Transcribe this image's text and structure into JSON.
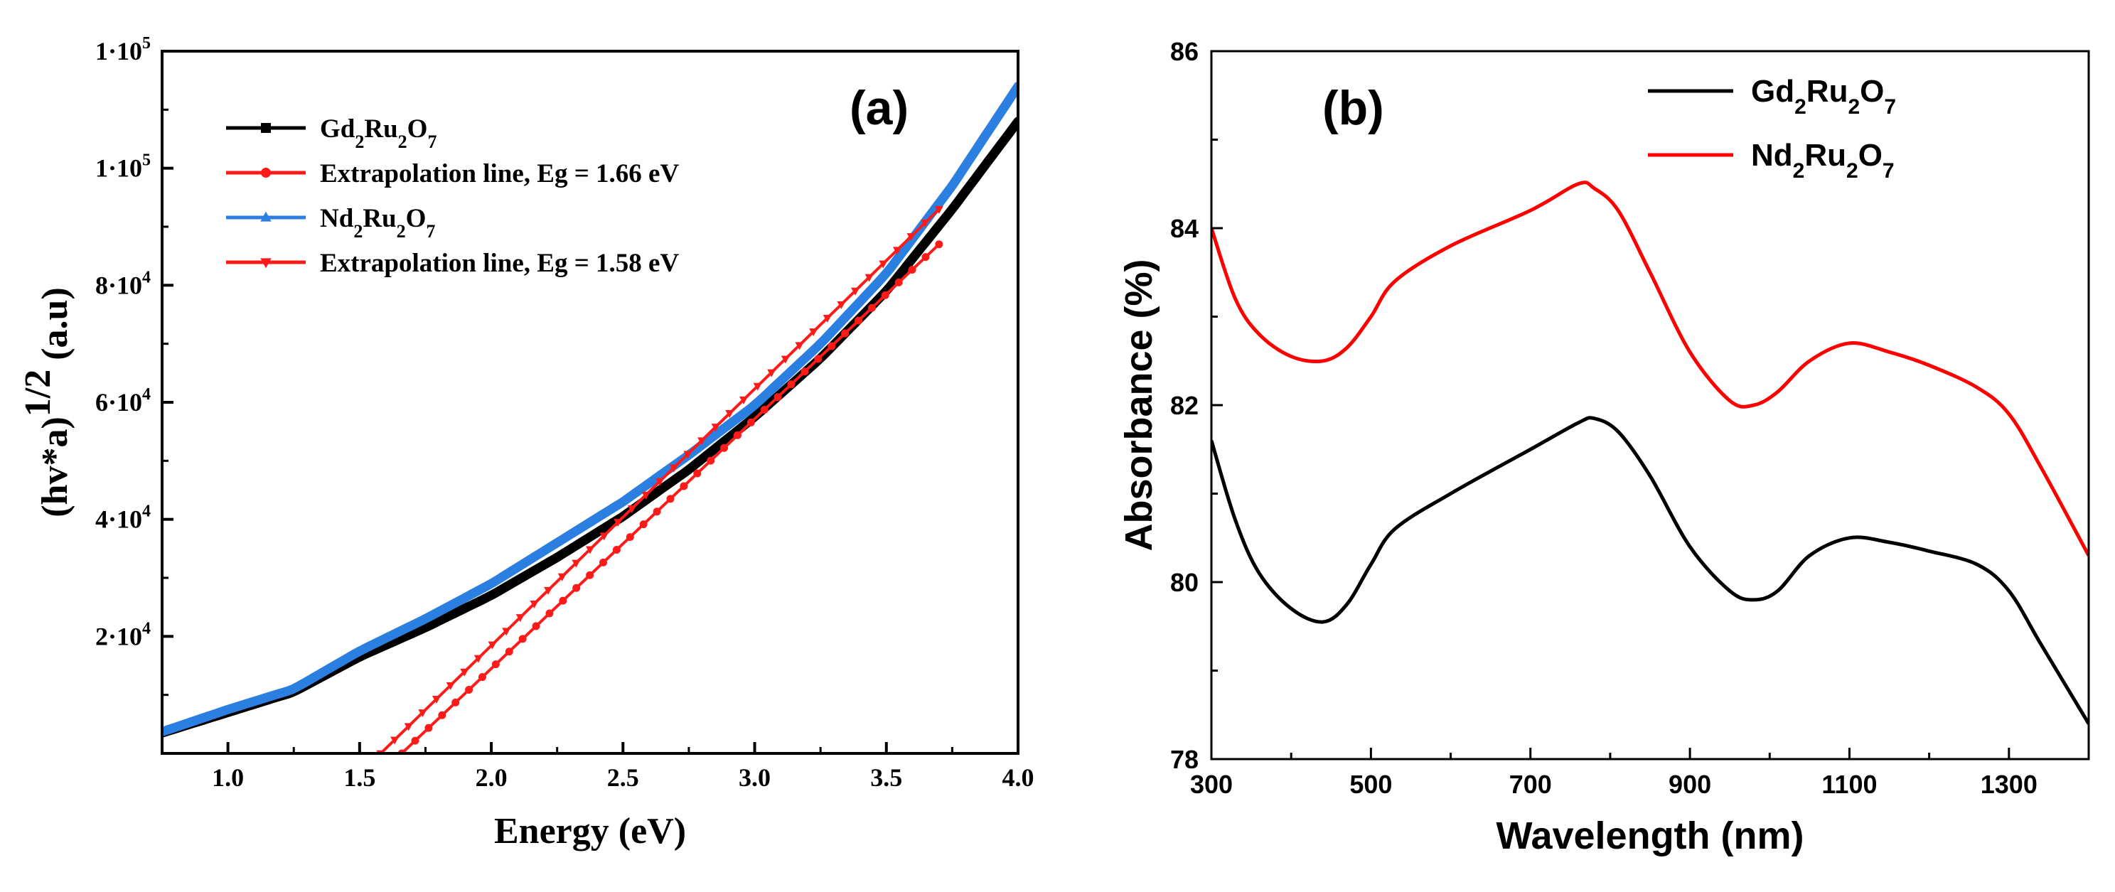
{
  "chart_data": [
    {
      "id": "a",
      "type": "line",
      "panel_label": "(a)",
      "title": "",
      "xlabel": "Energy (eV)",
      "ylabel_main": "(hv*a)",
      "ylabel_sup": "1/2",
      "ylabel_unit": " (a.u)",
      "xlim": [
        0.75,
        4.0
      ],
      "ylim": [
        0,
        120000
      ],
      "xticks": [
        1.0,
        1.5,
        2.0,
        2.5,
        3.0,
        3.5,
        4.0
      ],
      "xtick_labels": [
        "1.0",
        "1.5",
        "2.0",
        "2.5",
        "3.0",
        "3.5",
        "4.0"
      ],
      "yticks": [
        20000,
        40000,
        60000,
        80000,
        100000,
        120000
      ],
      "ytick_labels": [
        {
          "mant": "2·10",
          "exp": "4"
        },
        {
          "mant": "4·10",
          "exp": "4"
        },
        {
          "mant": "6·10",
          "exp": "4"
        },
        {
          "mant": "8·10",
          "exp": "4"
        },
        {
          "mant": "1·10",
          "exp": "5"
        },
        {
          "mant": "1·10",
          "exp": "5"
        }
      ],
      "legend_position": "top-left",
      "series": [
        {
          "name": "Gd2Ru2O7",
          "label_parts": [
            [
              "Gd",
              ""
            ],
            [
              "2",
              "sub"
            ],
            [
              "Ru",
              ""
            ],
            [
              "2",
              "sub"
            ],
            [
              "O",
              ""
            ],
            [
              "7",
              "sub"
            ]
          ],
          "color": "#000000",
          "marker": "square",
          "style": "thick",
          "x": [
            0.75,
            1.0,
            1.25,
            1.5,
            1.75,
            2.0,
            2.25,
            2.5,
            2.75,
            3.0,
            3.25,
            3.5,
            3.75,
            4.0
          ],
          "y": [
            3500,
            7000,
            10500,
            16500,
            21500,
            27000,
            33500,
            40500,
            48500,
            57500,
            67500,
            79000,
            93000,
            108000
          ]
        },
        {
          "name": "Extrapolation line, Eg = 1.66 eV",
          "label_parts": [
            [
              "Extrapolation line, Eg = 1.66 eV",
              ""
            ]
          ],
          "color": "#ff1a1a",
          "marker": "circle",
          "style": "dotted-markers",
          "x": [
            1.66,
            3.7
          ],
          "y": [
            0,
            87000
          ]
        },
        {
          "name": "Nd2Ru2O7",
          "label_parts": [
            [
              "Nd",
              ""
            ],
            [
              "2",
              "sub"
            ],
            [
              "Ru",
              ""
            ],
            [
              "2",
              "sub"
            ],
            [
              "O",
              ""
            ],
            [
              "7",
              "sub"
            ]
          ],
          "color": "#2b7fe0",
          "marker": "triangle",
          "style": "thick",
          "x": [
            0.75,
            1.0,
            1.25,
            1.5,
            1.75,
            2.0,
            2.25,
            2.5,
            2.75,
            3.0,
            3.25,
            3.5,
            3.75,
            4.0
          ],
          "y": [
            3700,
            7500,
            11000,
            17500,
            23000,
            29000,
            36000,
            43000,
            51000,
            59500,
            70000,
            82000,
            97000,
            114000
          ]
        },
        {
          "name": "Extrapolation line, Eg = 1.58 eV",
          "label_parts": [
            [
              "Extrapolation line, Eg = 1.58 eV",
              ""
            ]
          ],
          "color": "#ff1a1a",
          "marker": "triangle-down",
          "style": "dotted-markers",
          "x": [
            1.58,
            3.7
          ],
          "y": [
            0,
            93000
          ]
        }
      ]
    },
    {
      "id": "b",
      "type": "line",
      "panel_label": "(b)",
      "title": "",
      "xlabel": "Wavelength (nm)",
      "ylabel": "Absorbance (%)",
      "xlim": [
        300,
        1400
      ],
      "ylim": [
        78,
        86
      ],
      "xticks": [
        300,
        500,
        700,
        900,
        1100,
        1300
      ],
      "xtick_labels": [
        "300",
        "500",
        "700",
        "900",
        "1100",
        "1300"
      ],
      "yticks": [
        78,
        80,
        82,
        84,
        86
      ],
      "ytick_labels": [
        "78",
        "80",
        "82",
        "84",
        "86"
      ],
      "legend_position": "top-right",
      "series": [
        {
          "name": "Gd2Ru2O7",
          "label_parts": [
            [
              "Gd",
              ""
            ],
            [
              "2",
              "sub"
            ],
            [
              "Ru",
              ""
            ],
            [
              "2",
              "sub"
            ],
            [
              "O",
              ""
            ],
            [
              "7",
              "sub"
            ]
          ],
          "color": "#000000",
          "x": [
            300,
            330,
            360,
            400,
            440,
            470,
            500,
            530,
            600,
            700,
            760,
            780,
            810,
            850,
            900,
            950,
            980,
            1010,
            1050,
            1100,
            1150,
            1200,
            1260,
            1300,
            1340,
            1400
          ],
          "y": [
            81.6,
            80.7,
            80.1,
            79.7,
            79.55,
            79.75,
            80.2,
            80.6,
            81.0,
            81.5,
            81.8,
            81.85,
            81.7,
            81.2,
            80.4,
            79.9,
            79.8,
            79.9,
            80.3,
            80.5,
            80.45,
            80.35,
            80.2,
            79.9,
            79.3,
            78.4
          ]
        },
        {
          "name": "Nd2Ru2O7",
          "label_parts": [
            [
              "Nd",
              ""
            ],
            [
              "2",
              "sub"
            ],
            [
              "Ru",
              ""
            ],
            [
              "2",
              "sub"
            ],
            [
              "O",
              ""
            ],
            [
              "7",
              "sub"
            ]
          ],
          "color": "#ff0000",
          "x": [
            300,
            330,
            360,
            400,
            440,
            470,
            500,
            530,
            600,
            700,
            760,
            780,
            810,
            850,
            900,
            950,
            980,
            1010,
            1050,
            1100,
            1150,
            1200,
            1260,
            1300,
            1340,
            1400
          ],
          "y": [
            84.0,
            83.2,
            82.8,
            82.55,
            82.5,
            82.65,
            83.0,
            83.4,
            83.8,
            84.2,
            84.5,
            84.45,
            84.2,
            83.5,
            82.6,
            82.05,
            82.0,
            82.15,
            82.5,
            82.7,
            82.6,
            82.45,
            82.2,
            81.9,
            81.3,
            80.3
          ]
        }
      ]
    }
  ]
}
